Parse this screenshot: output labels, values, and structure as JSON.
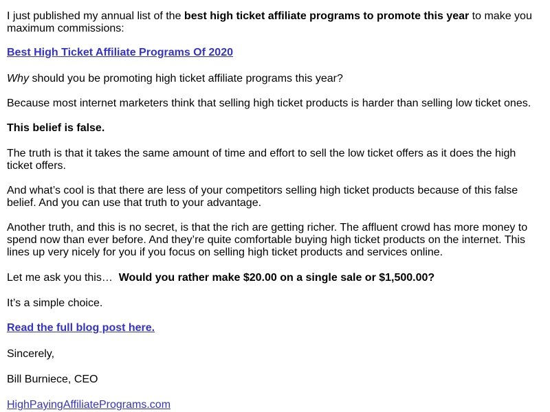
{
  "email": {
    "intro": {
      "before": "I just published my annual list of the ",
      "bold": "best high ticket affiliate programs to promote this year",
      "after": " to make you maximum commissions:"
    },
    "title_link": "Best High Ticket Affiliate Programs Of 2020",
    "why": {
      "italic": "Why",
      "rest": " should you be promoting high ticket affiliate programs this year?"
    },
    "because": "Because most internet marketers think that selling high ticket products is harder than selling low ticket ones.",
    "belief": "This belief is false.",
    "truth1": "The truth is that it takes the same amount of time and effort to sell the low ticket offers as it does the high ticket offers.",
    "cool": "And what’s cool is that there are less of your competitors selling high ticket products because of this false belief. And you can use that truth to your advantage.",
    "rich": "Another truth, and this is no secret, is that the rich are getting richer. The affluent crowd has more money to spend now than ever before. And they’re quite comfortable buying high ticket products on the internet. This lines up very nicely for you if you focus on selling high ticket products and services online.",
    "ask": {
      "before": "Let me ask you this…  ",
      "bold": "Would you rather make $20.00 on a single sale or $1,500.00?"
    },
    "simple": "It’s a simple choice.",
    "readmore_link": "Read the full blog post here.",
    "sincerely": "Sincerely,",
    "signature": "Bill Burniece, CEO",
    "site_link": "HighPayingAffiliatePrograms.com"
  },
  "colors": {
    "link": "#3333cc",
    "text": "#000000",
    "background": "#ffffff"
  }
}
